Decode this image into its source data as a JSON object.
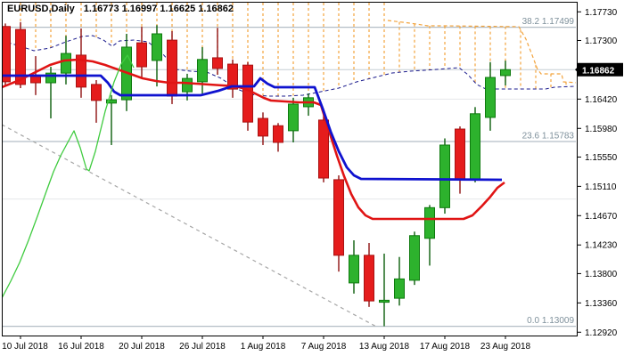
{
  "header": {
    "symbol_period": "EURUSD,Daily",
    "ohlc_line": "1.16773 1.16997 1.16625 1.16862"
  },
  "chart_data": {
    "type": "candlestick",
    "symbol": "EURUSD",
    "timeframe": "Daily",
    "title": "EURUSD,Daily",
    "current_price": "1.16862",
    "ylim": [
      1.1292,
      1.1773
    ],
    "grid": "horizontal-sparse",
    "legend_position": "none",
    "y_axis": {
      "ticks": [
        "1.17730",
        "1.17300",
        "1.16420",
        "1.15980",
        "1.15550",
        "1.15110",
        "1.14670",
        "1.14230",
        "1.13800",
        "1.13360",
        "1.12920"
      ]
    },
    "x_axis": {
      "labels": [
        "10 Jul 2018",
        "16 Jul 2018",
        "20 Jul 2018",
        "26 Jul 2018",
        "1 Aug 2018",
        "7 Aug 2018",
        "13 Aug 2018",
        "17 Aug 2018",
        "23 Aug 2018"
      ],
      "label_bar_indices": [
        1,
        5,
        9,
        13,
        17,
        21,
        25,
        29,
        33
      ]
    },
    "bars": [
      {
        "date": "9 Jul 2018",
        "o": 1.1751,
        "h": 1.17555,
        "l": 1.16625,
        "c": 1.1668
      },
      {
        "date": "10 Jul 2018",
        "o": 1.17465,
        "h": 1.17575,
        "l": 1.16585,
        "c": 1.1664
      },
      {
        "date": "11 Jul 2018",
        "o": 1.1677,
        "h": 1.17065,
        "l": 1.1648,
        "c": 1.16665
      },
      {
        "date": "12 Jul 2018",
        "o": 1.16665,
        "h": 1.16905,
        "l": 1.1613,
        "c": 1.1681
      },
      {
        "date": "13 Jul 2018",
        "o": 1.1681,
        "h": 1.1737,
        "l": 1.1664,
        "c": 1.17105
      },
      {
        "date": "16 Jul 2018",
        "o": 1.1708,
        "h": 1.1748,
        "l": 1.1644,
        "c": 1.166
      },
      {
        "date": "17 Jul 2018",
        "o": 1.1664,
        "h": 1.16705,
        "l": 1.16065,
        "c": 1.164
      },
      {
        "date": "18 Jul 2018",
        "o": 1.1636,
        "h": 1.1648,
        "l": 1.1573,
        "c": 1.1641
      },
      {
        "date": "19 Jul 2018",
        "o": 1.1641,
        "h": 1.174,
        "l": 1.1624,
        "c": 1.172
      },
      {
        "date": "20 Jul 2018",
        "o": 1.17265,
        "h": 1.17505,
        "l": 1.16745,
        "c": 1.16905
      },
      {
        "date": "23 Jul 2018",
        "o": 1.17,
        "h": 1.1753,
        "l": 1.1661,
        "c": 1.174
      },
      {
        "date": "24 Jul 2018",
        "o": 1.17305,
        "h": 1.1744,
        "l": 1.16345,
        "c": 1.16465
      },
      {
        "date": "25 Jul 2018",
        "o": 1.1653,
        "h": 1.168,
        "l": 1.164,
        "c": 1.1673
      },
      {
        "date": "26 Jul 2018",
        "o": 1.1668,
        "h": 1.172,
        "l": 1.16505,
        "c": 1.17015
      },
      {
        "date": "27 Jul 2018",
        "o": 1.1704,
        "h": 1.1749,
        "l": 1.16785,
        "c": 1.1688
      },
      {
        "date": "30 Jul 2018",
        "o": 1.16945,
        "h": 1.17015,
        "l": 1.1644,
        "c": 1.1657
      },
      {
        "date": "31 Jul 2018",
        "o": 1.1693,
        "h": 1.16975,
        "l": 1.15945,
        "c": 1.16075
      },
      {
        "date": "1 Aug 2018",
        "o": 1.1613,
        "h": 1.1622,
        "l": 1.1573,
        "c": 1.15865
      },
      {
        "date": "2 Aug 2018",
        "o": 1.1602,
        "h": 1.1606,
        "l": 1.1563,
        "c": 1.1577
      },
      {
        "date": "3 Aug 2018",
        "o": 1.15945,
        "h": 1.1644,
        "l": 1.1577,
        "c": 1.16345
      },
      {
        "date": "6 Aug 2018",
        "o": 1.16305,
        "h": 1.16505,
        "l": 1.1617,
        "c": 1.1644
      },
      {
        "date": "7 Aug 2018",
        "o": 1.16105,
        "h": 1.162,
        "l": 1.1517,
        "c": 1.15235
      },
      {
        "date": "8 Aug 2018",
        "o": 1.1521,
        "h": 1.15275,
        "l": 1.1383,
        "c": 1.14075
      },
      {
        "date": "9 Aug 2018",
        "o": 1.1366,
        "h": 1.143,
        "l": 1.135,
        "c": 1.14075
      },
      {
        "date": "10 Aug 2018",
        "o": 1.14075,
        "h": 1.1426,
        "l": 1.133,
        "c": 1.1339
      },
      {
        "date": "13 Aug 2018",
        "o": 1.1337,
        "h": 1.141,
        "l": 1.1301,
        "c": 1.134
      },
      {
        "date": "14 Aug 2018",
        "o": 1.1343,
        "h": 1.1405,
        "l": 1.1332,
        "c": 1.1372
      },
      {
        "date": "15 Aug 2018",
        "o": 1.137,
        "h": 1.1443,
        "l": 1.1363,
        "c": 1.1437
      },
      {
        "date": "16 Aug 2018",
        "o": 1.1433,
        "h": 1.1483,
        "l": 1.1392,
        "c": 1.1479
      },
      {
        "date": "17 Aug 2018",
        "o": 1.1479,
        "h": 1.1583,
        "l": 1.147,
        "c": 1.1573
      },
      {
        "date": "20 Aug 2018",
        "o": 1.1597,
        "h": 1.1601,
        "l": 1.15,
        "c": 1.1521
      },
      {
        "date": "21 Aug 2018",
        "o": 1.1521,
        "h": 1.163,
        "l": 1.1517,
        "c": 1.162
      },
      {
        "date": "22 Aug 2018",
        "o": 1.16145,
        "h": 1.16975,
        "l": 1.15945,
        "c": 1.16745
      },
      {
        "date": "23 Aug 2018",
        "o": 1.16773,
        "h": 1.16997,
        "l": 1.16625,
        "c": 1.16862
      }
    ],
    "fibonacci": [
      {
        "label": "38.2 1.17499",
        "price": 1.17499
      },
      {
        "label": "23.6 1.15783",
        "price": 1.15783
      },
      {
        "label": "0.0 1.13009",
        "price": 1.13009
      }
    ],
    "gridline_prices": [
      1.1642,
      1.1492
    ],
    "bid_line_price": 1.16862,
    "indicators": {
      "ma_red": [
        [
          2,
          1.16598
        ],
        [
          22,
          1.16705
        ],
        [
          40,
          1.16825
        ],
        [
          56,
          1.16932
        ],
        [
          72,
          1.16999
        ],
        [
          88,
          1.17013
        ],
        [
          104,
          1.16986
        ],
        [
          118,
          1.16932
        ],
        [
          132,
          1.16865
        ],
        [
          146,
          1.16799
        ],
        [
          160,
          1.16732
        ],
        [
          175,
          1.16692
        ],
        [
          190,
          1.16665
        ],
        [
          205,
          1.16665
        ],
        [
          220,
          1.16652
        ],
        [
          235,
          1.16638
        ],
        [
          250,
          1.16625
        ],
        [
          264,
          1.16611
        ],
        [
          272,
          1.16585
        ],
        [
          280,
          1.16545
        ],
        [
          288,
          1.16491
        ],
        [
          296,
          1.16438
        ],
        [
          304,
          1.16398
        ],
        [
          320,
          1.16385
        ],
        [
          336,
          1.16371
        ],
        [
          352,
          1.16371
        ],
        [
          360,
          1.16331
        ],
        [
          370,
          1.15904
        ],
        [
          378,
          1.15569
        ],
        [
          386,
          1.15262
        ],
        [
          394,
          1.14995
        ],
        [
          402,
          1.14794
        ],
        [
          410,
          1.14674
        ],
        [
          418,
          1.14621
        ],
        [
          520,
          1.14621
        ],
        [
          530,
          1.14674
        ],
        [
          540,
          1.14807
        ],
        [
          550,
          1.14954
        ],
        [
          558,
          1.15088
        ],
        [
          566,
          1.15168
        ]
      ],
      "ma_blue": [
        [
          2,
          1.16772
        ],
        [
          113,
          1.16772
        ],
        [
          121,
          1.16665
        ],
        [
          128,
          1.16531
        ],
        [
          135,
          1.16478
        ],
        [
          225,
          1.16478
        ],
        [
          245,
          1.16545
        ],
        [
          260,
          1.16611
        ],
        [
          285,
          1.16611
        ],
        [
          292,
          1.16732
        ],
        [
          300,
          1.16652
        ],
        [
          308,
          1.16598
        ],
        [
          353,
          1.16598
        ],
        [
          362,
          1.16277
        ],
        [
          371,
          1.1593
        ],
        [
          380,
          1.15636
        ],
        [
          389,
          1.15396
        ],
        [
          397,
          1.15275
        ],
        [
          405,
          1.15222
        ],
        [
          563,
          1.15208
        ]
      ],
      "chikou_green": [
        [
          2,
          1.13432
        ],
        [
          12,
          1.13686
        ],
        [
          22,
          1.13966
        ],
        [
          32,
          1.143
        ],
        [
          42,
          1.14661
        ],
        [
          52,
          1.15035
        ],
        [
          60,
          1.15329
        ],
        [
          68,
          1.15569
        ],
        [
          76,
          1.1577
        ],
        [
          83,
          1.15943
        ],
        [
          90,
          1.1569
        ],
        [
          97,
          1.15369
        ],
        [
          100,
          1.15343
        ],
        [
          107,
          1.15636
        ],
        [
          118,
          1.16237
        ],
        [
          128,
          1.16678
        ],
        [
          136,
          1.16946
        ],
        [
          143,
          1.17079
        ],
        [
          150,
          1.16892
        ]
      ],
      "senkou_b_navy": [
        [
          2,
          1.17293
        ],
        [
          20,
          1.17226
        ],
        [
          38,
          1.17146
        ],
        [
          56,
          1.17186
        ],
        [
          74,
          1.1728
        ],
        [
          92,
          1.1736
        ],
        [
          104,
          1.17373
        ],
        [
          116,
          1.17306
        ],
        [
          126,
          1.17213
        ],
        [
          134,
          1.17293
        ],
        [
          150,
          1.17306
        ],
        [
          166,
          1.1728
        ],
        [
          182,
          1.17106
        ],
        [
          198,
          1.16865
        ],
        [
          214,
          1.16839
        ],
        [
          232,
          1.16825
        ],
        [
          248,
          1.16732
        ],
        [
          264,
          1.16585
        ],
        [
          280,
          1.16491
        ],
        [
          300,
          1.16465
        ],
        [
          320,
          1.16465
        ],
        [
          340,
          1.16478
        ],
        [
          360,
          1.16531
        ],
        [
          380,
          1.16585
        ],
        [
          400,
          1.16678
        ],
        [
          420,
          1.16745
        ],
        [
          440,
          1.16812
        ],
        [
          460,
          1.16839
        ],
        [
          490,
          1.16865
        ],
        [
          515,
          1.16892
        ],
        [
          525,
          1.16785
        ],
        [
          535,
          1.16638
        ],
        [
          545,
          1.16571
        ],
        [
          612,
          1.16571
        ],
        [
          622,
          1.16598
        ],
        [
          645,
          1.16611
        ]
      ],
      "senkou_a_orange": [
        [
          435,
          1.176
        ],
        [
          460,
          1.1756
        ],
        [
          480,
          1.1752
        ],
        [
          500,
          1.1752
        ],
        [
          582,
          1.17507
        ],
        [
          590,
          1.1732
        ],
        [
          597,
          1.17079
        ],
        [
          603,
          1.16865
        ],
        [
          607,
          1.16799
        ],
        [
          630,
          1.16799
        ],
        [
          632,
          1.16678
        ],
        [
          648,
          1.16665
        ]
      ],
      "trendline_gray": [
        [
          2,
          1.16037
        ],
        [
          424,
          1.12991
        ]
      ]
    },
    "colors": {
      "background": "#FFFFFF",
      "border": "#000000",
      "bull_body": "#2DB22D",
      "bull_edge": "#0E7A0E",
      "bull_wick": "#0B5E0B",
      "bear_body": "#E51C1C",
      "bear_edge": "#A81212",
      "bear_wick": "#8E1010",
      "ma_red": "#E01414",
      "ma_blue": "#0F12CF",
      "chikou": "#3FCB3F",
      "senkou_b": "#1A1A8C",
      "senkou_a": "#F2A33C",
      "cloud_hatch": "#F2A33C",
      "trendline": "#A6A6A6",
      "fib_line": "#B4BEC6",
      "fib_text": "#7E909B",
      "grid": "#E4E7EA",
      "bid_line": "#C6CDD3",
      "badge_bg": "#000000",
      "badge_text": "#FFFFFF",
      "axis_text": "#000000"
    }
  }
}
